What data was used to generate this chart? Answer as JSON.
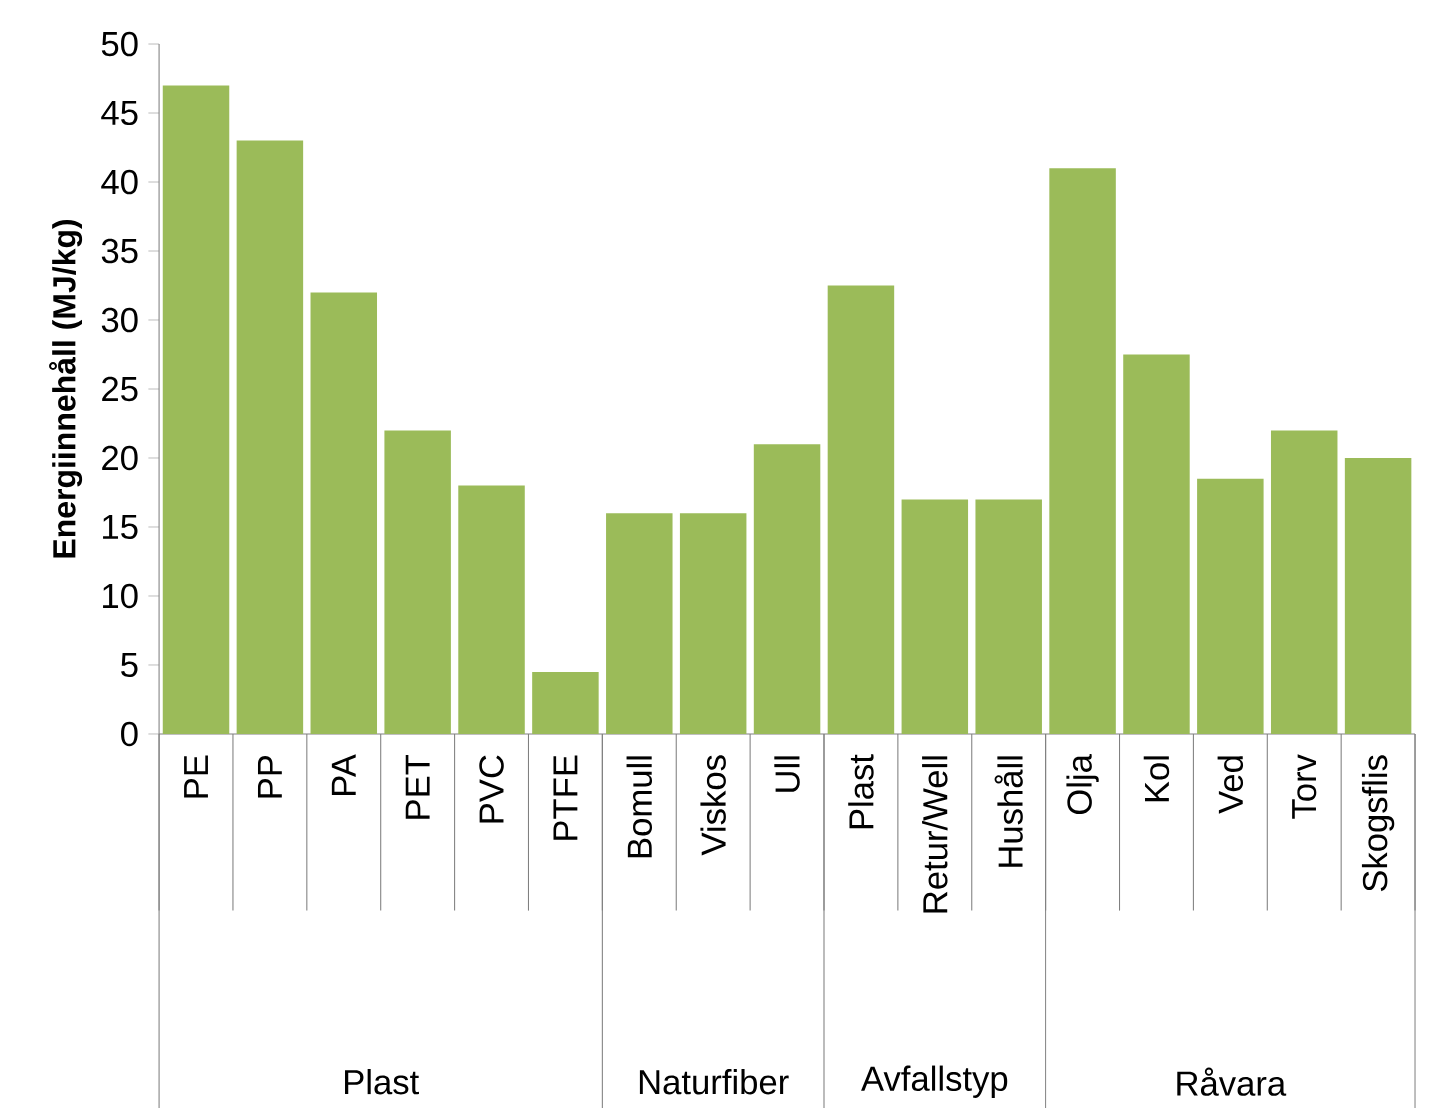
{
  "chart_data": {
    "type": "bar",
    "ylabel": "Energiinnehåll (MJ/kg)",
    "categories": [
      "PE",
      "PP",
      "PA",
      "PET",
      "PVC",
      "PTFE",
      "Bomull",
      "Viskos",
      "Ull",
      "Plast",
      "Retur/Well",
      "Hushåll",
      "Olja",
      "Kol",
      "Ved",
      "Torv",
      "Skogsflis"
    ],
    "values": [
      47,
      43,
      32,
      22,
      18,
      4.5,
      16,
      16,
      21,
      32.5,
      17,
      17,
      41,
      27.5,
      18.5,
      22,
      20
    ],
    "color": "#9bbb59",
    "ylim": [
      0,
      50
    ],
    "yticks": [
      0,
      5,
      10,
      15,
      20,
      25,
      30,
      35,
      40,
      45,
      50
    ],
    "annotations": [
      "Plast",
      "Naturfiber",
      "Avfallstyp",
      "Råvara"
    ]
  }
}
